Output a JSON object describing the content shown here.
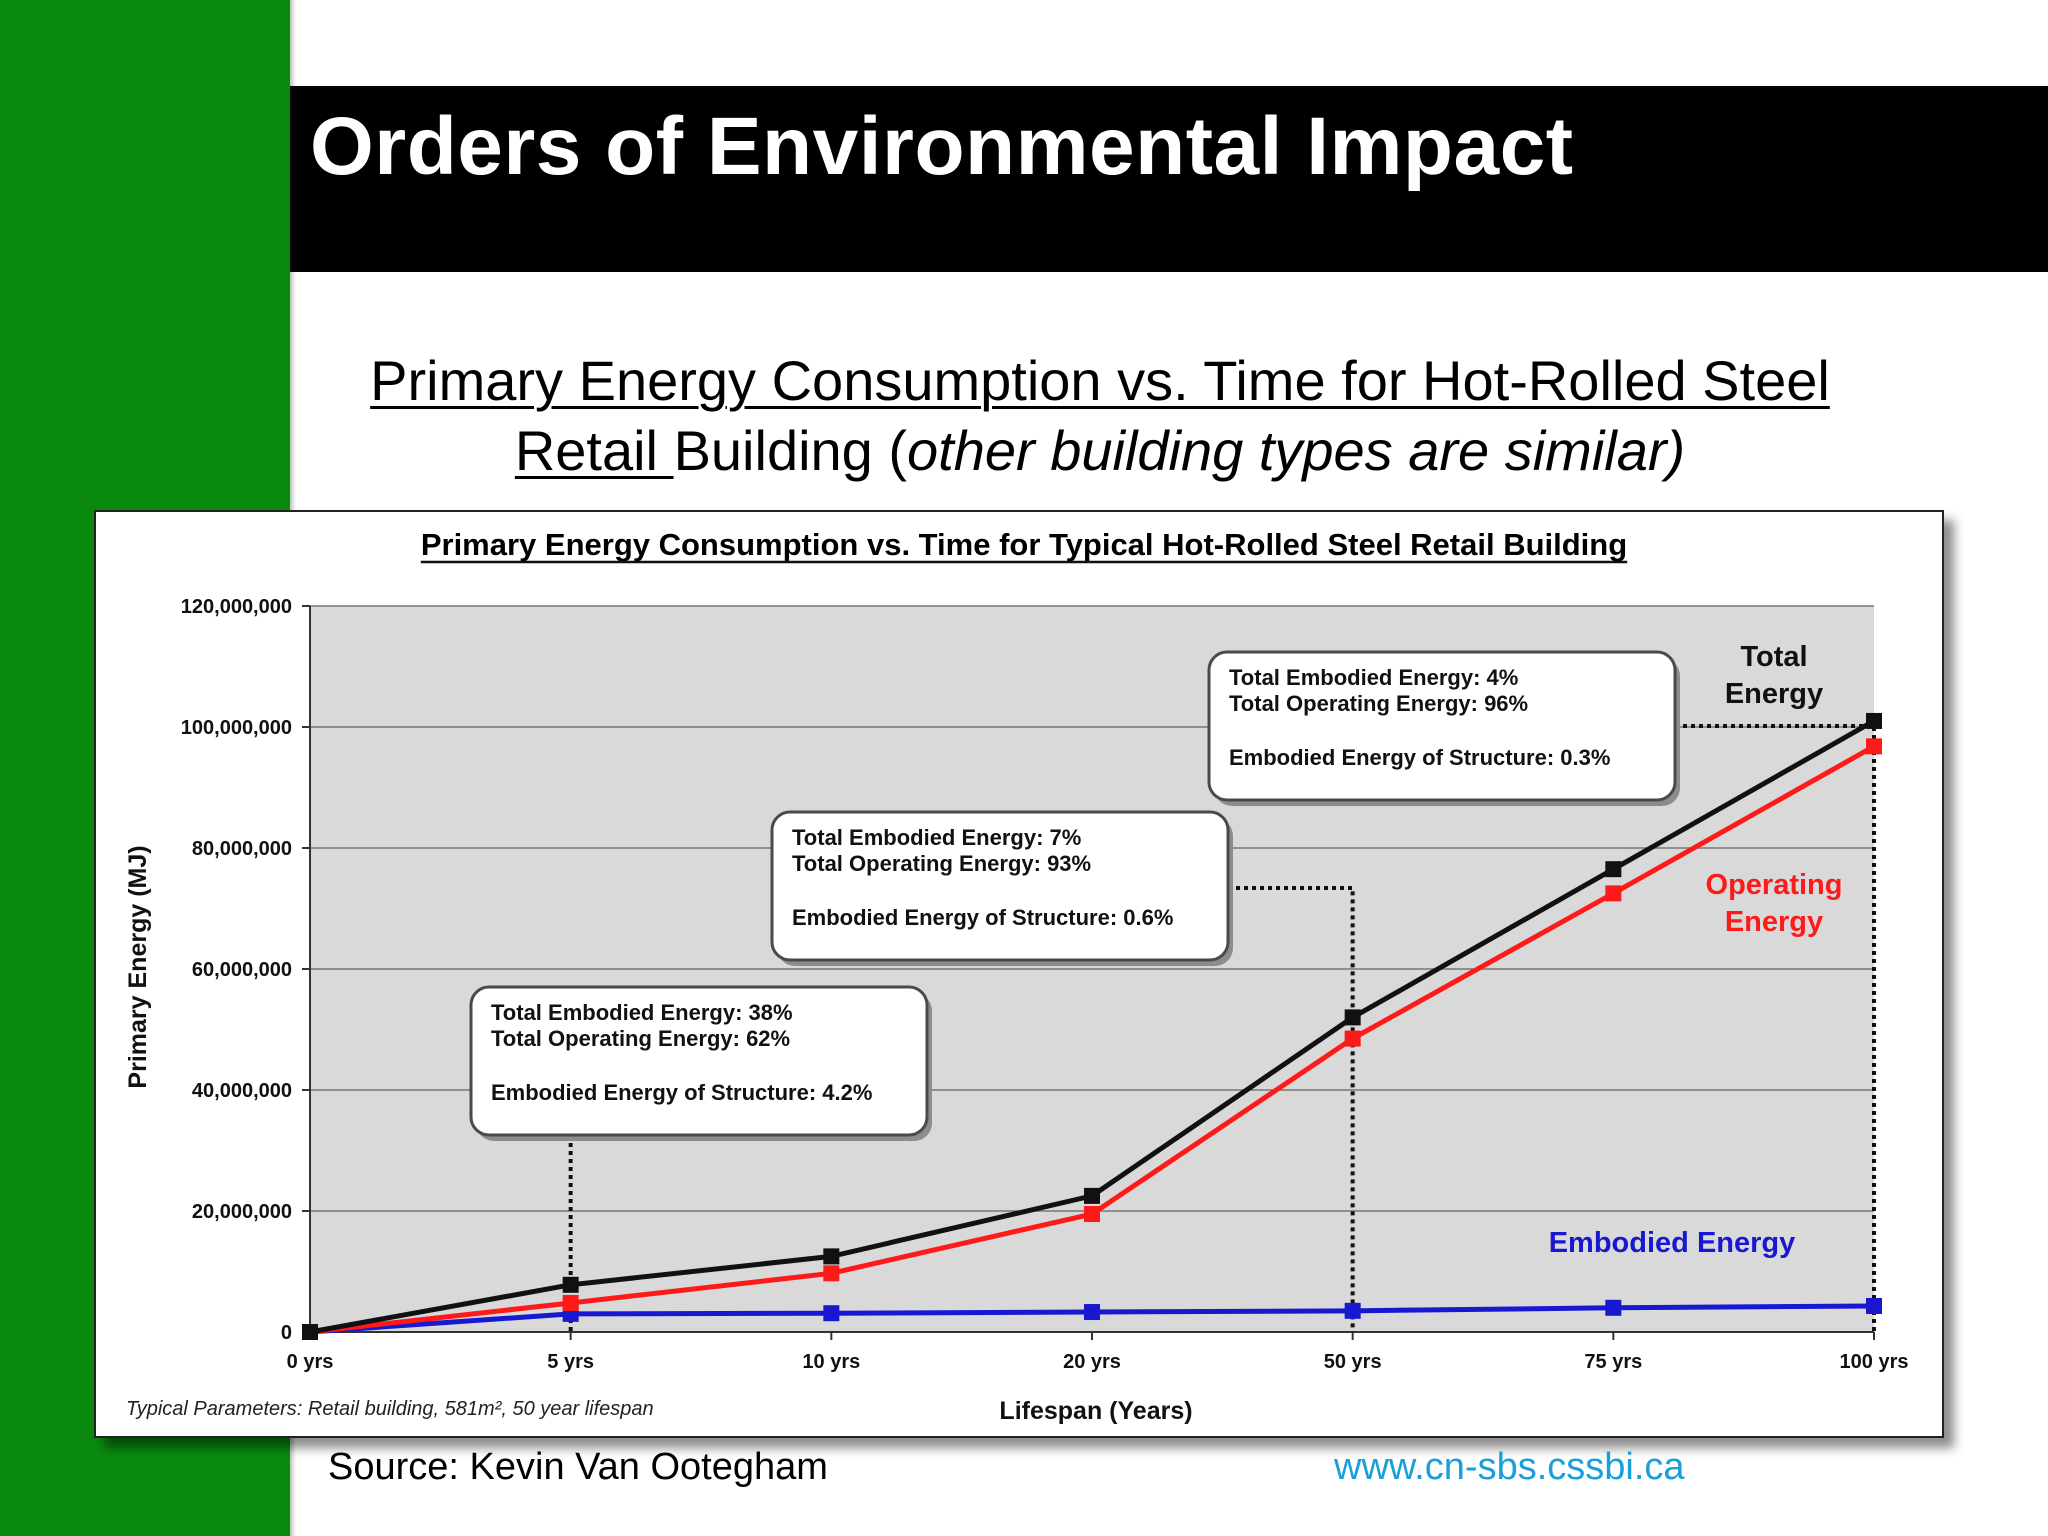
{
  "slide": {
    "title": "Orders of Environmental Impact",
    "subtitle_part1": "Primary Energy Consumption vs. Time for Hot-Rolled Steel",
    "subtitle_part2": "Retail ",
    "subtitle_part3": "Building (",
    "subtitle_italic": "other building types are similar)",
    "source": "Source: Kevin Van Ootegham",
    "website": "www.cn-sbs.cssbi.ca"
  },
  "colors": {
    "green": "#098a0f",
    "total": "#111111",
    "operating": "#ff1a1a",
    "embodied": "#1818d0",
    "plot_bg": "#d9d9d9",
    "website": "#1a9fd8"
  },
  "chart_data": {
    "type": "line",
    "title": "Primary Energy Consumption vs. Time for Typical Hot-Rolled Steel Retail Building",
    "xlabel": "Lifespan (Years)",
    "ylabel": "Primary Energy (MJ)",
    "ylim": [
      0,
      120000000
    ],
    "yticks": [
      0,
      20000000,
      40000000,
      60000000,
      80000000,
      100000000,
      120000000
    ],
    "ytick_labels": [
      "0",
      "20,000,000",
      "40,000,000",
      "60,000,000",
      "80,000,000",
      "100,000,000",
      "120,000,000"
    ],
    "categories": [
      "0 yrs",
      "5 yrs",
      "10 yrs",
      "20 yrs",
      "50 yrs",
      "75 yrs",
      "100 yrs"
    ],
    "grid": true,
    "series": [
      {
        "name": "Total Energy",
        "label_lines": [
          "Total",
          "Energy"
        ],
        "color": "#111111",
        "values": [
          0,
          7800000,
          12500000,
          22500000,
          52000000,
          76500000,
          101000000
        ]
      },
      {
        "name": "Operating Energy",
        "label_lines": [
          "Operating",
          "Energy"
        ],
        "color": "#ff1a1a",
        "values": [
          0,
          4800000,
          9700000,
          19500000,
          48500000,
          72500000,
          96800000
        ]
      },
      {
        "name": "Embodied Energy",
        "label_lines": [
          "Embodied Energy"
        ],
        "color": "#1818d0",
        "values": [
          0,
          3000000,
          3100000,
          3300000,
          3500000,
          4000000,
          4300000
        ]
      }
    ],
    "annotations": [
      {
        "x_category": "5 yrs",
        "lines": [
          "Total Embodied Energy: 38%",
          "Total Operating Energy: 62%",
          "",
          "Embodied Energy of Structure: 4.2%"
        ]
      },
      {
        "x_category": "50 yrs",
        "lines": [
          "Total Embodied Energy: 7%",
          "Total Operating Energy: 93%",
          "",
          "Embodied Energy of Structure: 0.6%"
        ]
      },
      {
        "x_category": "100 yrs",
        "lines": [
          "Total Embodied Energy: 4%",
          "Total Operating Energy: 96%",
          "",
          "Embodied Energy of Structure: 0.3%"
        ]
      }
    ],
    "note": "Typical Parameters: Retail building,  581m², 50 year lifespan"
  }
}
